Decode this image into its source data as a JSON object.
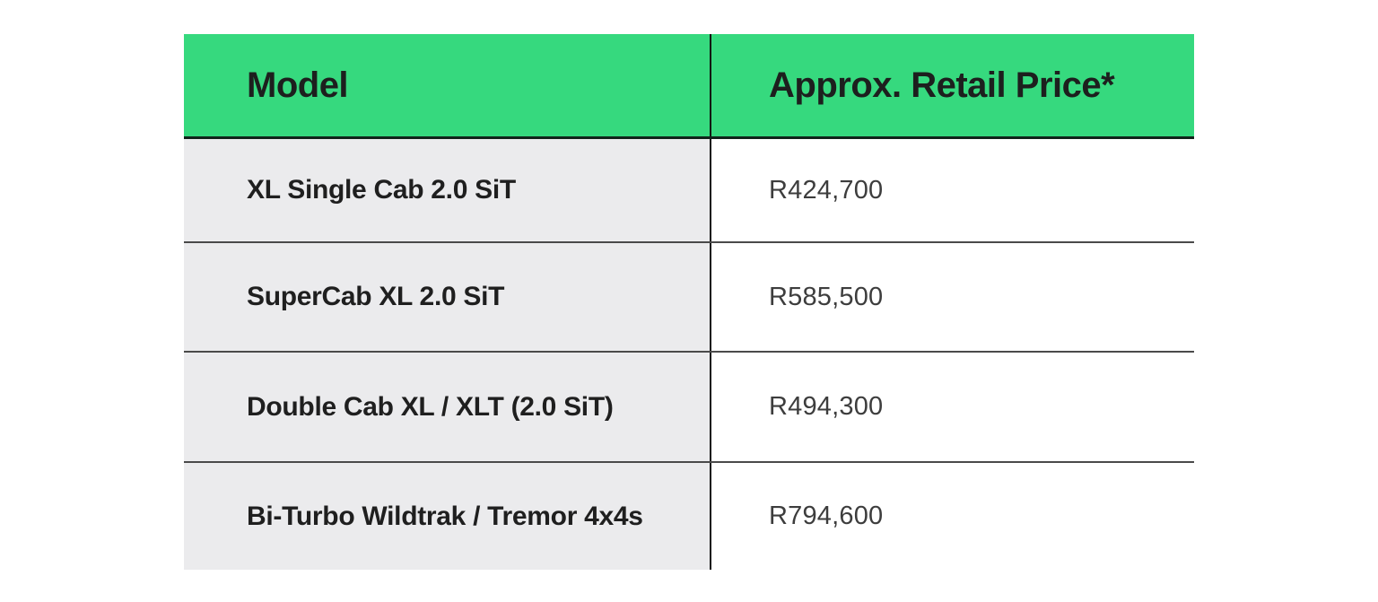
{
  "chart_data": {
    "type": "table",
    "title": "",
    "columns": [
      "Model",
      "Approx. Retail Price*"
    ],
    "rows": [
      [
        "XL Single Cab 2.0 SiT",
        "R424,700"
      ],
      [
        "SuperCab XL 2.0 SiT",
        "R585,500"
      ],
      [
        "Double Cab XL / XLT (2.0 SiT)",
        "R494,300"
      ],
      [
        "Bi-Turbo Wildtrak / Tremor 4x4s",
        "R794,600"
      ]
    ],
    "values_zar": [
      424700,
      585500,
      494300,
      794600
    ],
    "layout_hints": {
      "header_band": true,
      "left_column_shaded": true,
      "gridlines": "horizontal row separators + single vertical column divider",
      "outer_border": "none"
    }
  },
  "colors": {
    "header_bg": "#36d97e",
    "header_text": "#1d1f1e",
    "row_label_bg": "#ebebed",
    "row_label_text": "#1f1f1f",
    "price_cell_bg": "#ffffff",
    "price_text": "#3d3d3d",
    "divider": "#161616",
    "row_separator": "#4a4a4a"
  }
}
